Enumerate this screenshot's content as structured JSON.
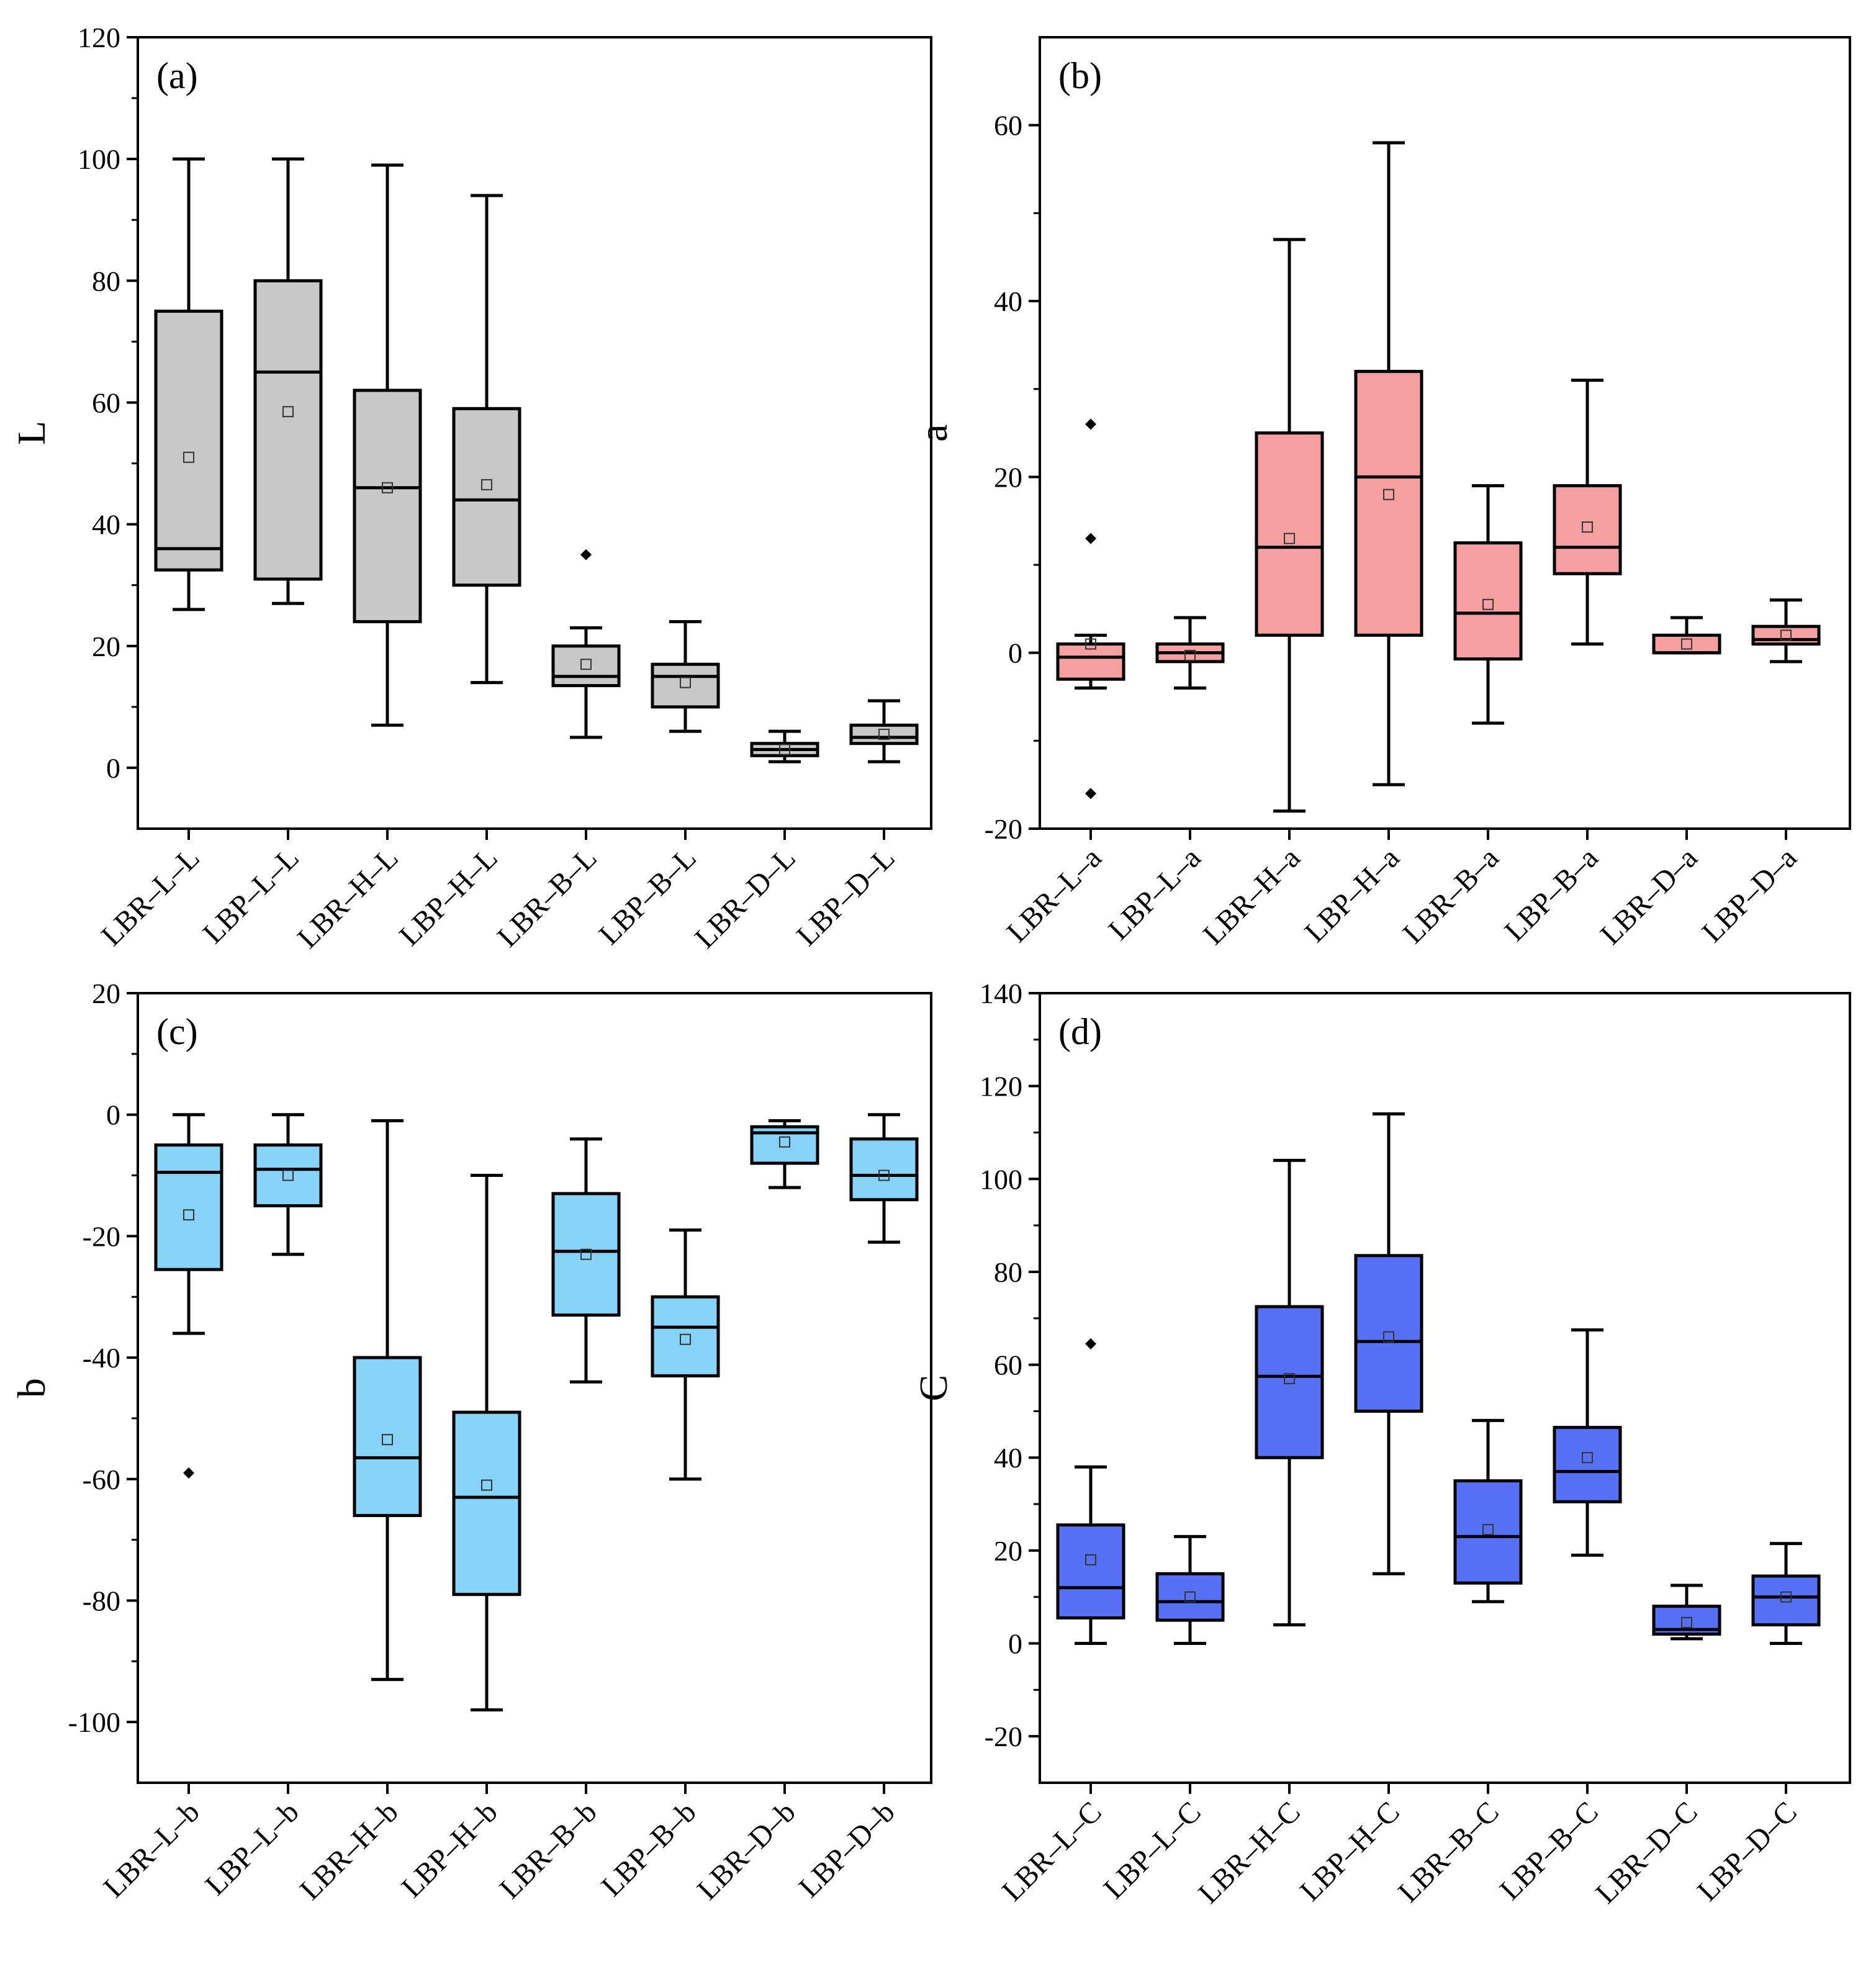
{
  "chart_data": [
    {
      "type": "box",
      "panel_label": "(a)",
      "ylabel": "L",
      "ylim": [
        -10,
        120
      ],
      "yticks": [
        0,
        20,
        40,
        60,
        80,
        100,
        120
      ],
      "ytick_labels": [
        "0",
        "20",
        "40",
        "60",
        "80",
        "100",
        "120"
      ],
      "colors": {
        "fill": "#c8c8c8",
        "stroke": "#000000"
      },
      "categories": [
        "LBR–L–L",
        "LBP–L–L",
        "LBR–H–L",
        "LBP–H–L",
        "LBR–B–L",
        "LBP–B–L",
        "LBR–D–L",
        "LBP–D–L"
      ],
      "boxes": [
        {
          "whisker_low": 26,
          "q1": 32.5,
          "median": 36,
          "q3": 75,
          "whisker_high": 100,
          "mean": 51,
          "outliers": []
        },
        {
          "whisker_low": 27,
          "q1": 31,
          "median": 65,
          "q3": 80,
          "whisker_high": 100,
          "mean": 58.5,
          "outliers": []
        },
        {
          "whisker_low": 7,
          "q1": 24,
          "median": 46,
          "q3": 62,
          "whisker_high": 99,
          "mean": 46,
          "outliers": []
        },
        {
          "whisker_low": 14,
          "q1": 30,
          "median": 44,
          "q3": 59,
          "whisker_high": 94,
          "mean": 46.5,
          "outliers": []
        },
        {
          "whisker_low": 5,
          "q1": 13.5,
          "median": 15,
          "q3": 20,
          "whisker_high": 23,
          "mean": 17,
          "outliers": [
            35
          ]
        },
        {
          "whisker_low": 6,
          "q1": 10,
          "median": 15,
          "q3": 17,
          "whisker_high": 24,
          "mean": 14,
          "outliers": []
        },
        {
          "whisker_low": 1,
          "q1": 2,
          "median": 3,
          "q3": 4,
          "whisker_high": 6,
          "mean": 3,
          "outliers": []
        },
        {
          "whisker_low": 1,
          "q1": 4,
          "median": 5,
          "q3": 7,
          "whisker_high": 11,
          "mean": 5.5,
          "outliers": []
        }
      ]
    },
    {
      "type": "box",
      "panel_label": "(b)",
      "ylabel": "a",
      "ylim": [
        -20,
        70
      ],
      "yticks": [
        -20,
        0,
        20,
        40,
        60
      ],
      "ytick_labels": [
        "-20",
        "0",
        "20",
        "40",
        "60"
      ],
      "colors": {
        "fill": "#f4a0a0",
        "stroke": "#000000"
      },
      "categories": [
        "LBR–L–a",
        "LBP–L–a",
        "LBR–H–a",
        "LBP–H–a",
        "LBR–B–a",
        "LBP–B–a",
        "LBR–D–a",
        "LBP–D–a"
      ],
      "boxes": [
        {
          "whisker_low": -4,
          "q1": -3,
          "median": -0.5,
          "q3": 1,
          "whisker_high": 2,
          "mean": 1,
          "outliers": [
            26,
            13,
            -16
          ]
        },
        {
          "whisker_low": -4,
          "q1": -1,
          "median": 0,
          "q3": 1,
          "whisker_high": 4,
          "mean": -0.3,
          "outliers": []
        },
        {
          "whisker_low": -18,
          "q1": 2,
          "median": 12,
          "q3": 25,
          "whisker_high": 47,
          "mean": 13,
          "outliers": []
        },
        {
          "whisker_low": -15,
          "q1": 2,
          "median": 20,
          "q3": 32,
          "whisker_high": 58,
          "mean": 18,
          "outliers": []
        },
        {
          "whisker_low": -8,
          "q1": -0.7,
          "median": 4.5,
          "q3": 12.5,
          "whisker_high": 19,
          "mean": 5.5,
          "outliers": []
        },
        {
          "whisker_low": 1,
          "q1": 9,
          "median": 12,
          "q3": 19,
          "whisker_high": 31,
          "mean": 14.3,
          "outliers": []
        },
        {
          "whisker_low": 0,
          "q1": 0,
          "median": 0,
          "q3": 2,
          "whisker_high": 4,
          "mean": 1,
          "outliers": []
        },
        {
          "whisker_low": -1,
          "q1": 1,
          "median": 1.5,
          "q3": 3,
          "whisker_high": 6,
          "mean": 2,
          "outliers": []
        }
      ]
    },
    {
      "type": "box",
      "panel_label": "(c)",
      "ylabel": "b",
      "ylim": [
        -110,
        20
      ],
      "yticks": [
        -100,
        -80,
        -60,
        -40,
        -20,
        0,
        20
      ],
      "ytick_labels": [
        "-100",
        "-80",
        "-60",
        "-40",
        "-20",
        "0",
        "20"
      ],
      "colors": {
        "fill": "#87d3f8",
        "stroke": "#000000"
      },
      "categories": [
        "LBR–L–b",
        "LBP–L–b",
        "LBR–H–b",
        "LBP–H–b",
        "LBR–B–b",
        "LBP–B–b",
        "LBR–D–b",
        "LBP–D–b"
      ],
      "boxes": [
        {
          "whisker_low": -36,
          "q1": -25.5,
          "median": -9.5,
          "q3": -5,
          "whisker_high": 0,
          "mean": -16.5,
          "outliers": [
            -59
          ]
        },
        {
          "whisker_low": -23,
          "q1": -15,
          "median": -9,
          "q3": -5,
          "whisker_high": 0,
          "mean": -10,
          "outliers": []
        },
        {
          "whisker_low": -93,
          "q1": -66,
          "median": -56.5,
          "q3": -40,
          "whisker_high": -1,
          "mean": -53.5,
          "outliers": []
        },
        {
          "whisker_low": -98,
          "q1": -79,
          "median": -63,
          "q3": -49,
          "whisker_high": -10,
          "mean": -61,
          "outliers": []
        },
        {
          "whisker_low": -44,
          "q1": -33,
          "median": -22.5,
          "q3": -13,
          "whisker_high": -4,
          "mean": -23,
          "outliers": []
        },
        {
          "whisker_low": -60,
          "q1": -43,
          "median": -35,
          "q3": -30,
          "whisker_high": -19,
          "mean": -37,
          "outliers": []
        },
        {
          "whisker_low": -12,
          "q1": -8,
          "median": -3,
          "q3": -2,
          "whisker_high": -1,
          "mean": -4.5,
          "outliers": []
        },
        {
          "whisker_low": -21,
          "q1": -14,
          "median": -10,
          "q3": -4,
          "whisker_high": 0,
          "mean": -10,
          "outliers": []
        }
      ]
    },
    {
      "type": "box",
      "panel_label": "(d)",
      "ylabel": "C",
      "ylim": [
        -30,
        140
      ],
      "yticks": [
        -20,
        0,
        20,
        40,
        60,
        80,
        100,
        120,
        140
      ],
      "ytick_labels": [
        "-20",
        "0",
        "20",
        "40",
        "60",
        "80",
        "100",
        "120",
        "140"
      ],
      "colors": {
        "fill": "#5670f6",
        "stroke": "#000000"
      },
      "categories": [
        "LBR–L–C",
        "LBP–L–C",
        "LBR–H–C",
        "LBP–H–C",
        "LBR–B–C",
        "LBP–B–C",
        "LBR–D–C",
        "LBP–D–C"
      ],
      "boxes": [
        {
          "whisker_low": 0,
          "q1": 5.5,
          "median": 12,
          "q3": 25.5,
          "whisker_high": 38,
          "mean": 18,
          "outliers": [
            64.5
          ]
        },
        {
          "whisker_low": 0,
          "q1": 5,
          "median": 9,
          "q3": 15,
          "whisker_high": 23,
          "mean": 10,
          "outliers": []
        },
        {
          "whisker_low": 4,
          "q1": 40,
          "median": 57.5,
          "q3": 72.5,
          "whisker_high": 104,
          "mean": 57,
          "outliers": []
        },
        {
          "whisker_low": 15,
          "q1": 50,
          "median": 65,
          "q3": 83.5,
          "whisker_high": 114,
          "mean": 66,
          "outliers": []
        },
        {
          "whisker_low": 9,
          "q1": 13,
          "median": 23,
          "q3": 35,
          "whisker_high": 48,
          "mean": 24.5,
          "outliers": []
        },
        {
          "whisker_low": 19,
          "q1": 30.5,
          "median": 37,
          "q3": 46.5,
          "whisker_high": 67.5,
          "mean": 40,
          "outliers": []
        },
        {
          "whisker_low": 1,
          "q1": 2,
          "median": 3,
          "q3": 8,
          "whisker_high": 12.5,
          "mean": 4.5,
          "outliers": []
        },
        {
          "whisker_low": 0,
          "q1": 4,
          "median": 10,
          "q3": 14.5,
          "whisker_high": 21.5,
          "mean": 10,
          "outliers": []
        }
      ]
    }
  ]
}
